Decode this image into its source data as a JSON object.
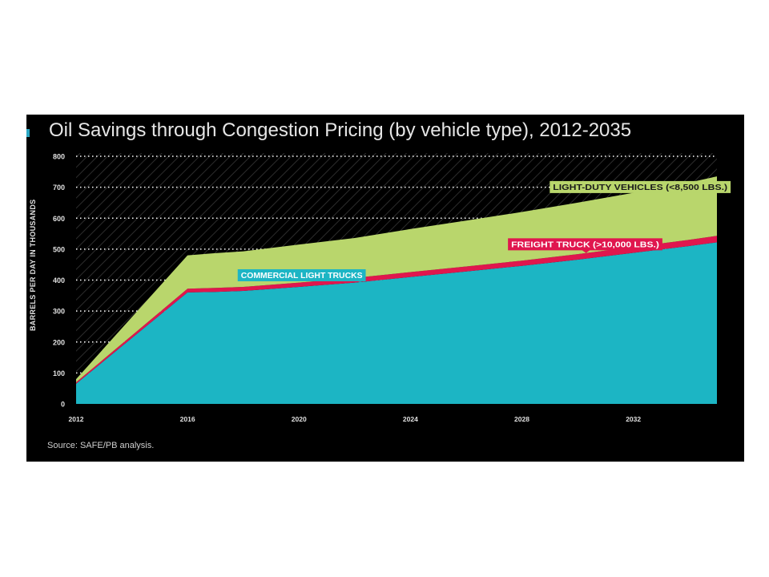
{
  "chart_data": {
    "type": "area",
    "stacked": true,
    "title": "Oil Savings through Congestion Pricing (by vehicle type), 2012-2035",
    "ylabel": "BARRELS PER DAY IN THOUSANDS",
    "xlabel": "",
    "ylim": [
      0,
      800
    ],
    "yticks": [
      0,
      100,
      200,
      300,
      400,
      500,
      600,
      700,
      800
    ],
    "xlim": [
      2012,
      2035
    ],
    "xticks": [
      "2012",
      "2016",
      "2020",
      "2024",
      "2028",
      "2032"
    ],
    "grid": true,
    "x": [
      2012,
      2016,
      2017,
      2018,
      2020,
      2022,
      2024,
      2026,
      2028,
      2030,
      2032,
      2034,
      2035
    ],
    "series": [
      {
        "name": "COMMERCIAL LIGHT TRUCKS",
        "color": "#1cb5c4",
        "values": [
          65,
          360,
          362,
          365,
          378,
          392,
          410,
          428,
          446,
          466,
          488,
          510,
          522
        ]
      },
      {
        "name": "FREIGHT TRUCK (>10,000 LBS.)",
        "color": "#e0164e",
        "values": [
          5,
          12,
          13,
          13,
          14,
          15,
          16,
          16,
          17,
          18,
          19,
          20,
          21
        ]
      },
      {
        "name": "LIGHT-DUTY VEHICLES (<8,500 LBS.)",
        "color": "#b9d66c",
        "values": [
          10,
          108,
          112,
          115,
          123,
          129,
          139,
          148,
          157,
          166,
          175,
          185,
          192
        ]
      }
    ],
    "source": "Source: SAFE/PB analysis."
  }
}
